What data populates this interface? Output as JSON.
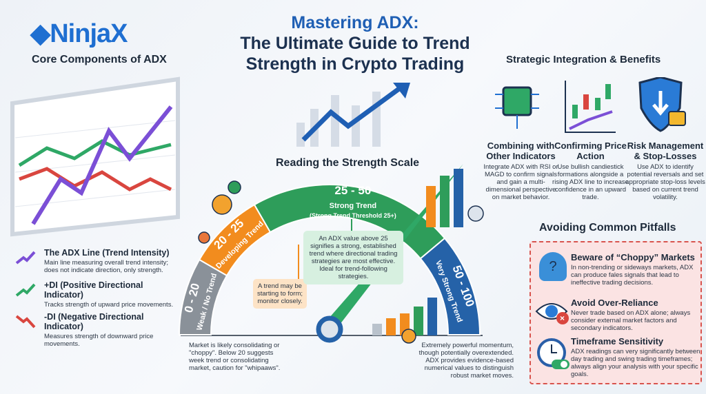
{
  "logo": "NinjaX",
  "title": {
    "line1": "Mastering ADX:",
    "line2": "The Ultimate Guide to Trend",
    "line3": "Strength in Crypto Trading"
  },
  "core": {
    "heading": "Core Components of ADX",
    "items": [
      {
        "title": "The ADX Line (Trend Intensity)",
        "desc": "Main line measuring overall trend intensity; does not indicate direction, only strength.",
        "color": "#7b4fd6",
        "icon": "trend-up-arrow-icon"
      },
      {
        "title": "+DI (Positive Directional Indicator)",
        "desc": "Tracks strength of upward price movements.",
        "color": "#2fa866",
        "icon": "trend-up-arrow-icon"
      },
      {
        "title": "-DI (Negative Directional Indicator)",
        "desc": "Measures strength of downward price movements.",
        "color": "#d9463f",
        "icon": "trend-down-arrow-icon"
      }
    ]
  },
  "scale": {
    "heading": "Reading the Strength Scale",
    "segments": [
      {
        "range": "0 - 20",
        "label": "Weak / No Trend",
        "color": "#8a9199"
      },
      {
        "range": "20 - 25",
        "label": "Developing Trend",
        "color": "#f28c1e"
      },
      {
        "range": "25 - 50",
        "label": "Strong Trend",
        "sub": "(Strong Trend Threshold 25+)",
        "color": "#2e9d5a"
      },
      {
        "range": "50 - 100",
        "label": "Very Strong Trend",
        "color": "#2562a8"
      }
    ],
    "notes": {
      "weak": "Market is likely consolidating or \"choppy\". Below 20 suggests week trend or consolidating market, caution for \"whipaaws\".",
      "developing": "A trend may be starting to form; monitor closely.",
      "strong": "An ADX value above 25 signifies a strong, established trend where directional trading strategies are most effective. Ideal for trend-following strategies.",
      "very_strong": "Extremely powerful momentum, though potentially overextended. ADX provides evidence-based numerical values to distinguish robust market moves."
    }
  },
  "strategic": {
    "heading": "Strategic Integration & Benefits",
    "items": [
      {
        "title": "Combining with Other Indicators",
        "desc": "Integrate ADX with RSI or MAGD to confirm signals and gain a multi-dimensional perspective on market behavior.",
        "icon": "chip-icon"
      },
      {
        "title": "Confirming Price Action",
        "desc": "Use bullish candiestick formations alongside a rising ADX line to increase confidence in an upward trade.",
        "icon": "candlestick-chart-icon"
      },
      {
        "title": "Risk Management & Stop-Losses",
        "desc": "Use ADX to identify potential reversals and set appropriate stop-loss levels based on current trend volatility.",
        "icon": "shield-lock-icon"
      }
    ]
  },
  "pitfalls": {
    "heading": "Avoiding Common Pitfalls",
    "items": [
      {
        "title": "Beware of “Choppy” Markets",
        "desc": "In non-trending or sideways markets, ADX can produce fales signals that lead to ineffective trading decisions.",
        "icon": "confused-person-icon"
      },
      {
        "title": "Avoid Over-Reliance",
        "desc": "Never trade based on ADX alone; always consider external market factors and secondary indicators.",
        "icon": "eye-cross-icon"
      },
      {
        "title": "Timeframe Sensitivity",
        "desc": "ADX readings can very significantly between day trading and swing trading timeframes; always align your analysis with your specific goals.",
        "icon": "clock-toggle-icon"
      }
    ]
  }
}
